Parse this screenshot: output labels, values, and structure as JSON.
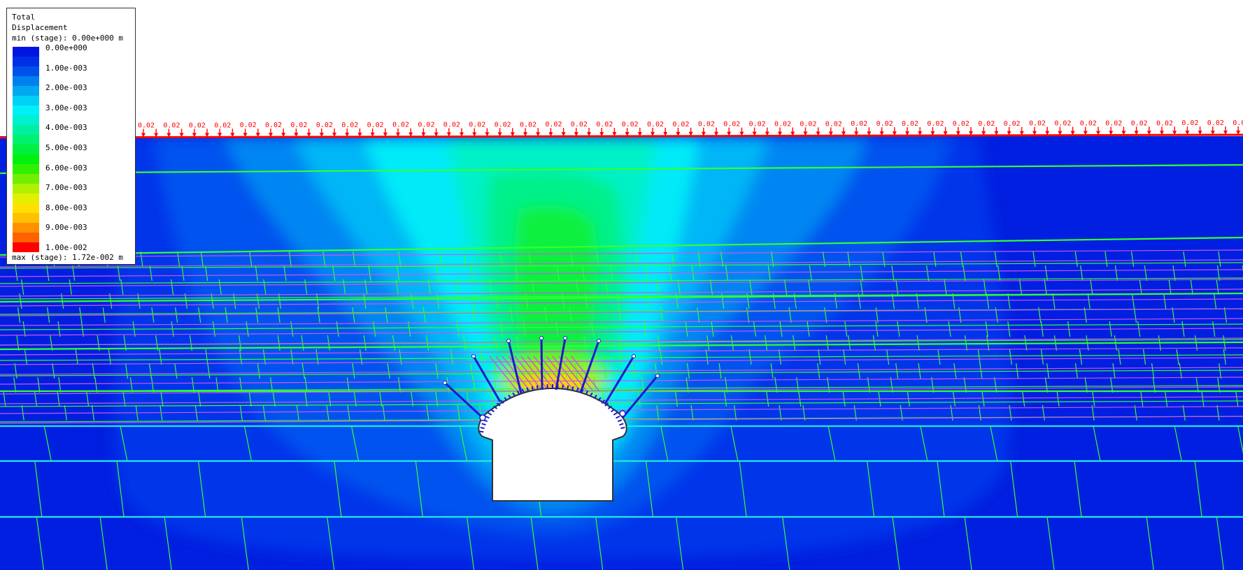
{
  "legend": {
    "title_line1": "Total",
    "title_line2": "Displacement",
    "min_label": "min (stage): 0.00e+000 m",
    "max_label": "max (stage): 1.72e-002 m",
    "colors": [
      "#0015e0",
      "#0030e6",
      "#0050ea",
      "#0080ee",
      "#00a8f2",
      "#00d0f6",
      "#00f0f8",
      "#00f0d0",
      "#00f0a0",
      "#00f070",
      "#00f040",
      "#00f010",
      "#30f000",
      "#70f000",
      "#b0f000",
      "#e0f000",
      "#ffe000",
      "#ffc000",
      "#ff9000",
      "#ff6000",
      "#ff0000"
    ],
    "labels": [
      "0.00e+000",
      "1.00e-003",
      "2.00e-003",
      "3.00e-003",
      "4.00e-003",
      "5.00e-003",
      "6.00e-003",
      "7.00e-003",
      "8.00e-003",
      "9.00e-003",
      "1.00e-002"
    ]
  },
  "load_label": "0.02",
  "colors": {
    "base": "#001fe0",
    "load": "#ff0000",
    "joint": "#33ff33",
    "bedding_magenta": "#cc55ee",
    "bolt": "#1a1ad0",
    "liner": "#333333"
  }
}
